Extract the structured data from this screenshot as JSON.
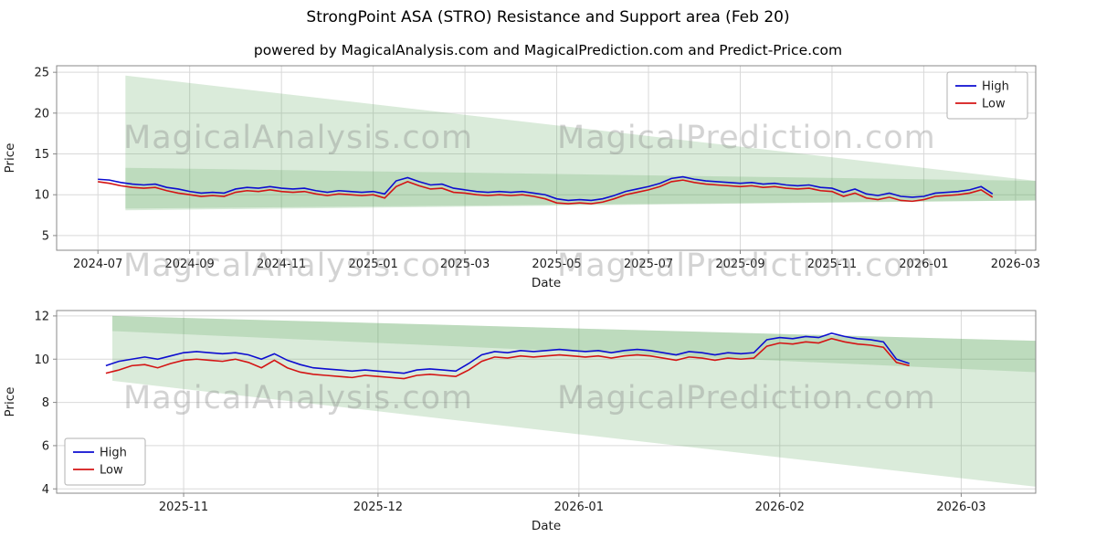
{
  "figure": {
    "title": "StrongPoint ASA (STRO) Resistance and Support area (Feb 20)",
    "subtitle": "powered by MagicalAnalysis.com and MagicalPrediction.com and Predict-Price.com",
    "watermark_left": "MagicalAnalysis.com",
    "watermark_right": "MagicalPrediction.com"
  },
  "colors": {
    "high": "#0d0dd0",
    "low": "#d41414",
    "band": "#57a657",
    "grid": "#d9d9d9",
    "spine": "#888888",
    "text": "#1c1c1c",
    "watermark": "rgba(130,130,130,0.35)"
  },
  "chart_data": [
    {
      "type": "line",
      "xlabel": "Date",
      "ylabel": "Price",
      "xlim": [
        -0.9,
        20.44
      ],
      "ylim": [
        3.2,
        25.8
      ],
      "yticks": [
        5,
        10,
        15,
        20,
        25
      ],
      "xticks": [
        {
          "x": 0,
          "label": "2024-07"
        },
        {
          "x": 2,
          "label": "2024-09"
        },
        {
          "x": 4,
          "label": "2024-11"
        },
        {
          "x": 6,
          "label": "2025-01"
        },
        {
          "x": 8,
          "label": "2025-03"
        },
        {
          "x": 10,
          "label": "2025-05"
        },
        {
          "x": 12,
          "label": "2025-07"
        },
        {
          "x": 14,
          "label": "2025-09"
        },
        {
          "x": 16,
          "label": "2025-11"
        },
        {
          "x": 18,
          "label": "2026-01"
        },
        {
          "x": 20,
          "label": "2026-03"
        }
      ],
      "grid": true,
      "legend": {
        "position": "top-right",
        "labels": [
          "High",
          "Low"
        ]
      },
      "bands": [
        {
          "points": [
            [
              0.6,
              24.6
            ],
            [
              20.44,
              11.7
            ],
            [
              20.44,
              9.3
            ],
            [
              0.6,
              8.1
            ]
          ],
          "opacity": 0.22
        },
        {
          "points": [
            [
              0.6,
              13.3
            ],
            [
              20.44,
              11.7
            ],
            [
              20.44,
              9.3
            ],
            [
              0.6,
              8.3
            ]
          ],
          "opacity": 0.22
        }
      ],
      "series": [
        {
          "name": "High",
          "color_key": "high",
          "x0": 0,
          "dx": 0.25,
          "y": [
            11.9,
            11.8,
            11.5,
            11.3,
            11.2,
            11.3,
            10.9,
            10.7,
            10.4,
            10.2,
            10.3,
            10.2,
            10.7,
            10.9,
            10.8,
            11.0,
            10.8,
            10.7,
            10.8,
            10.5,
            10.3,
            10.5,
            10.4,
            10.3,
            10.4,
            10.1,
            11.7,
            12.1,
            11.6,
            11.2,
            11.3,
            10.8,
            10.6,
            10.4,
            10.3,
            10.4,
            10.3,
            10.4,
            10.2,
            10.0,
            9.5,
            9.3,
            9.4,
            9.3,
            9.5,
            9.9,
            10.4,
            10.7,
            11.0,
            11.4,
            12.0,
            12.2,
            11.9,
            11.7,
            11.6,
            11.5,
            11.4,
            11.5,
            11.3,
            11.4,
            11.2,
            11.1,
            11.2,
            10.9,
            10.8,
            10.3,
            10.7,
            10.1,
            9.9,
            10.2,
            9.8,
            9.7,
            9.8,
            10.2,
            10.3,
            10.4,
            10.6,
            11.0,
            10.1
          ]
        },
        {
          "name": "Low",
          "color_key": "low",
          "x0": 0,
          "dx": 0.25,
          "y": [
            11.6,
            11.4,
            11.1,
            10.9,
            10.8,
            10.9,
            10.5,
            10.2,
            10.0,
            9.8,
            9.9,
            9.8,
            10.3,
            10.5,
            10.4,
            10.6,
            10.4,
            10.3,
            10.4,
            10.1,
            9.9,
            10.1,
            10.0,
            9.9,
            10.0,
            9.6,
            11.0,
            11.6,
            11.1,
            10.7,
            10.8,
            10.3,
            10.2,
            10.0,
            9.9,
            10.0,
            9.9,
            10.0,
            9.8,
            9.5,
            9.0,
            8.9,
            9.0,
            8.9,
            9.1,
            9.5,
            10.0,
            10.3,
            10.6,
            11.0,
            11.6,
            11.8,
            11.5,
            11.3,
            11.2,
            11.1,
            11.0,
            11.1,
            10.9,
            11.0,
            10.8,
            10.7,
            10.8,
            10.5,
            10.4,
            9.8,
            10.2,
            9.6,
            9.4,
            9.7,
            9.3,
            9.2,
            9.4,
            9.8,
            9.9,
            10.0,
            10.2,
            10.6,
            9.7
          ]
        }
      ]
    },
    {
      "type": "line",
      "xlabel": "Date",
      "ylabel": "Price",
      "xlim": [
        -7.6,
        143.5
      ],
      "ylim": [
        3.8,
        12.25
      ],
      "yticks": [
        4,
        6,
        8,
        10,
        12
      ],
      "xticks": [
        {
          "x": 12,
          "label": "2025-11"
        },
        {
          "x": 42,
          "label": "2025-12"
        },
        {
          "x": 73,
          "label": "2026-01"
        },
        {
          "x": 104,
          "label": "2026-02"
        },
        {
          "x": 132,
          "label": "2026-03"
        }
      ],
      "grid": true,
      "legend": {
        "position": "bottom-left",
        "labels": [
          "High",
          "Low"
        ]
      },
      "bands": [
        {
          "points": [
            [
              1,
              12.0
            ],
            [
              143.5,
              10.85
            ],
            [
              143.5,
              4.1
            ],
            [
              1,
              9.0
            ]
          ],
          "opacity": 0.22
        },
        {
          "points": [
            [
              1,
              12.0
            ],
            [
              143.5,
              10.85
            ],
            [
              143.5,
              9.4
            ],
            [
              1,
              11.3
            ]
          ],
          "opacity": 0.22
        }
      ],
      "series": [
        {
          "name": "High",
          "color_key": "high",
          "x0": 0,
          "dx": 2,
          "y": [
            9.7,
            9.9,
            10.0,
            10.1,
            10.0,
            10.15,
            10.3,
            10.35,
            10.3,
            10.25,
            10.3,
            10.2,
            10.0,
            10.25,
            9.95,
            9.75,
            9.6,
            9.55,
            9.5,
            9.45,
            9.5,
            9.45,
            9.4,
            9.35,
            9.5,
            9.55,
            9.5,
            9.45,
            9.8,
            10.2,
            10.35,
            10.3,
            10.4,
            10.35,
            10.4,
            10.45,
            10.4,
            10.35,
            10.4,
            10.3,
            10.4,
            10.45,
            10.4,
            10.3,
            10.2,
            10.35,
            10.3,
            10.2,
            10.3,
            10.25,
            10.3,
            10.9,
            11.0,
            10.95,
            11.05,
            11.0,
            11.2,
            11.05,
            10.95,
            10.9,
            10.8,
            10.0,
            9.8
          ]
        },
        {
          "name": "Low",
          "color_key": "low",
          "x0": 0,
          "dx": 2,
          "y": [
            9.35,
            9.5,
            9.7,
            9.75,
            9.6,
            9.8,
            9.95,
            10.0,
            9.95,
            9.9,
            10.0,
            9.85,
            9.6,
            9.95,
            9.6,
            9.4,
            9.3,
            9.25,
            9.2,
            9.15,
            9.25,
            9.2,
            9.15,
            9.1,
            9.25,
            9.3,
            9.25,
            9.2,
            9.5,
            9.9,
            10.1,
            10.05,
            10.15,
            10.1,
            10.15,
            10.2,
            10.15,
            10.1,
            10.15,
            10.05,
            10.15,
            10.2,
            10.15,
            10.05,
            9.95,
            10.1,
            10.05,
            9.95,
            10.05,
            10.0,
            10.05,
            10.6,
            10.75,
            10.7,
            10.8,
            10.75,
            10.95,
            10.8,
            10.7,
            10.65,
            10.55,
            9.85,
            9.7
          ]
        }
      ]
    }
  ]
}
